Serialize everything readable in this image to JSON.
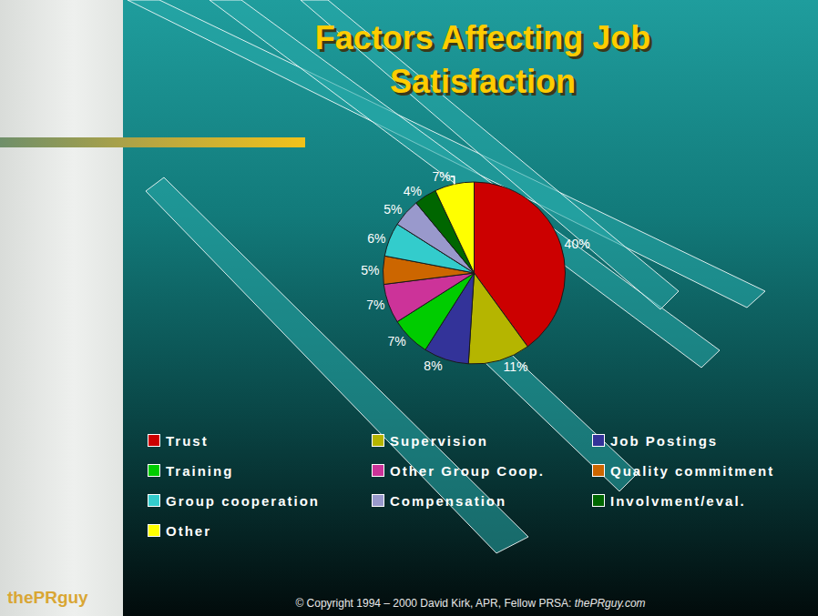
{
  "chart_data": {
    "type": "pie",
    "title": "Factors Affecting Job Satisfaction",
    "categories": [
      "Trust",
      "Supervision",
      "Job Postings",
      "Training",
      "Other Group Coop.",
      "Quality commitment",
      "Group cooperation",
      "Compensation",
      "Involvment/eval.",
      "Other"
    ],
    "values": [
      40,
      11,
      8,
      7,
      7,
      5,
      6,
      5,
      4,
      7
    ],
    "value_labels": [
      "40%",
      "11%",
      "8%",
      "7%",
      "7%",
      "5%",
      "6%",
      "5%",
      "4%",
      "7%"
    ],
    "colors": [
      "#cc0000",
      "#b5b500",
      "#333399",
      "#00cc00",
      "#cc3399",
      "#cc6600",
      "#33cccc",
      "#9999cc",
      "#006600",
      "#ffff00"
    ],
    "data_labels": true,
    "legend": "bottom"
  },
  "footer": {
    "copyright": "© Copyright 1994 – 2000 David Kirk, APR, Fellow PRSA:",
    "site": "thePRguy.com",
    "logo": "thePRguy"
  }
}
